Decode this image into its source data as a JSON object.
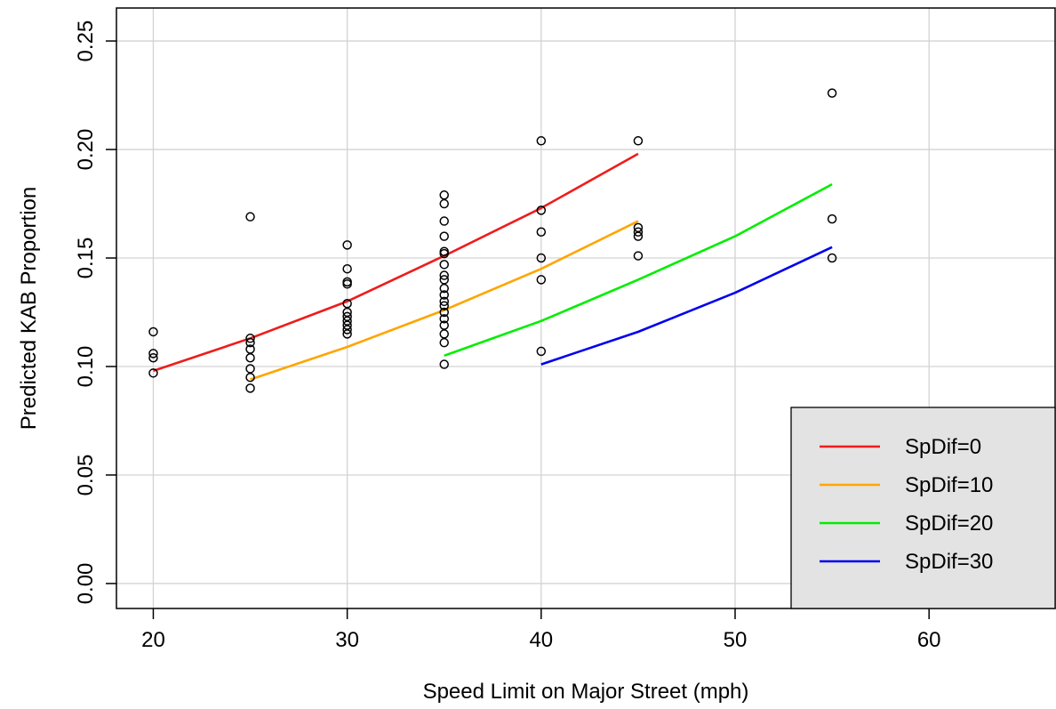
{
  "chart_data": {
    "type": "scatter",
    "title": "",
    "xlabel": "Speed Limit on Major Street (mph)",
    "ylabel": "Predicted KAB Proportion",
    "xlim": [
      18.1,
      66.5
    ],
    "ylim": [
      -0.0115,
      0.2652
    ],
    "xticks": [
      20,
      30,
      40,
      50,
      60
    ],
    "yticks": [
      0.0,
      0.05,
      0.1,
      0.15,
      0.2,
      0.25
    ],
    "xtick_labels": [
      "20",
      "30",
      "40",
      "50",
      "60"
    ],
    "ytick_labels": [
      "0.00",
      "0.05",
      "0.10",
      "0.15",
      "0.20",
      "0.25"
    ],
    "grid": true,
    "legend_position": "bottom-right",
    "points": [
      {
        "x": 20,
        "y": 0.116
      },
      {
        "x": 20,
        "y": 0.106
      },
      {
        "x": 20,
        "y": 0.104
      },
      {
        "x": 20,
        "y": 0.097
      },
      {
        "x": 25,
        "y": 0.169
      },
      {
        "x": 25,
        "y": 0.113
      },
      {
        "x": 25,
        "y": 0.111
      },
      {
        "x": 25,
        "y": 0.108
      },
      {
        "x": 25,
        "y": 0.104
      },
      {
        "x": 25,
        "y": 0.099
      },
      {
        "x": 25,
        "y": 0.095
      },
      {
        "x": 25,
        "y": 0.09
      },
      {
        "x": 30,
        "y": 0.156
      },
      {
        "x": 30,
        "y": 0.145
      },
      {
        "x": 30,
        "y": 0.139
      },
      {
        "x": 30,
        "y": 0.138
      },
      {
        "x": 30,
        "y": 0.129
      },
      {
        "x": 30,
        "y": 0.125
      },
      {
        "x": 30,
        "y": 0.123
      },
      {
        "x": 30,
        "y": 0.121
      },
      {
        "x": 30,
        "y": 0.119
      },
      {
        "x": 30,
        "y": 0.117
      },
      {
        "x": 30,
        "y": 0.115
      },
      {
        "x": 35,
        "y": 0.179
      },
      {
        "x": 35,
        "y": 0.175
      },
      {
        "x": 35,
        "y": 0.167
      },
      {
        "x": 35,
        "y": 0.16
      },
      {
        "x": 35,
        "y": 0.153
      },
      {
        "x": 35,
        "y": 0.152
      },
      {
        "x": 35,
        "y": 0.147
      },
      {
        "x": 35,
        "y": 0.142
      },
      {
        "x": 35,
        "y": 0.14
      },
      {
        "x": 35,
        "y": 0.136
      },
      {
        "x": 35,
        "y": 0.133
      },
      {
        "x": 35,
        "y": 0.13
      },
      {
        "x": 35,
        "y": 0.128
      },
      {
        "x": 35,
        "y": 0.125
      },
      {
        "x": 35,
        "y": 0.122
      },
      {
        "x": 35,
        "y": 0.119
      },
      {
        "x": 35,
        "y": 0.115
      },
      {
        "x": 35,
        "y": 0.111
      },
      {
        "x": 35,
        "y": 0.101
      },
      {
        "x": 40,
        "y": 0.204
      },
      {
        "x": 40,
        "y": 0.172
      },
      {
        "x": 40,
        "y": 0.162
      },
      {
        "x": 40,
        "y": 0.15
      },
      {
        "x": 40,
        "y": 0.14
      },
      {
        "x": 40,
        "y": 0.107
      },
      {
        "x": 45,
        "y": 0.204
      },
      {
        "x": 45,
        "y": 0.164
      },
      {
        "x": 45,
        "y": 0.162
      },
      {
        "x": 45,
        "y": 0.16
      },
      {
        "x": 45,
        "y": 0.151
      },
      {
        "x": 55,
        "y": 0.226
      },
      {
        "x": 55,
        "y": 0.168
      },
      {
        "x": 55,
        "y": 0.15
      }
    ],
    "series": [
      {
        "name": "SpDif=0",
        "color": "#ee1c1c",
        "x": [
          20,
          25,
          30,
          35,
          40,
          45
        ],
        "y": [
          0.098,
          0.113,
          0.13,
          0.151,
          0.173,
          0.198
        ]
      },
      {
        "name": "SpDif=10",
        "color": "#ffa500",
        "x": [
          25,
          30,
          35,
          40,
          45
        ],
        "y": [
          0.094,
          0.109,
          0.126,
          0.145,
          0.167
        ]
      },
      {
        "name": "SpDif=20",
        "color": "#00ee00",
        "x": [
          35,
          40,
          45,
          50,
          55
        ],
        "y": [
          0.105,
          0.121,
          0.14,
          0.16,
          0.184
        ]
      },
      {
        "name": "SpDif=30",
        "color": "#0000ee",
        "x": [
          40,
          45,
          50,
          55
        ],
        "y": [
          0.101,
          0.116,
          0.134,
          0.155
        ]
      }
    ]
  }
}
